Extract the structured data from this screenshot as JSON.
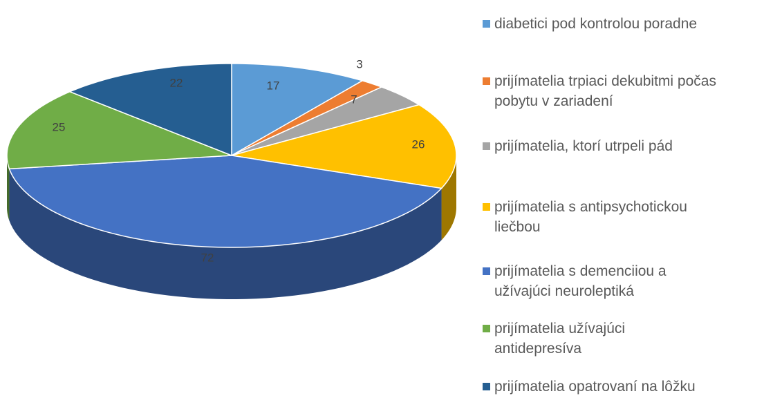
{
  "chart_data": {
    "type": "pie",
    "categories": [
      "diabetici pod kontrolou poradne",
      "prijímatelia trpiaci dekubitmi počas pobytu v zariadení",
      "prijímatelia, ktorí utrpeli pád",
      "prijímatelia s antipsychotickou liečbou",
      "prijímatelia s demenciiou a užívajúci neuroleptiká",
      "prijímatelia užívajúci antidepresíva",
      "prijímatelia opatrovaní na lôžku"
    ],
    "values": [
      17,
      3,
      7,
      26,
      72,
      25,
      22
    ],
    "colors": [
      "#5b9bd5",
      "#ed7d31",
      "#a5a5a5",
      "#ffc000",
      "#4472c4",
      "#70ad47",
      "#255e91"
    ],
    "legend": "right"
  }
}
